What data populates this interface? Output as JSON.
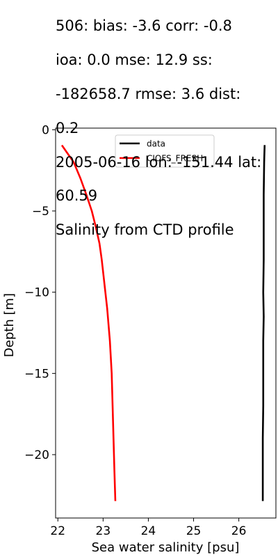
{
  "chart_data": {
    "type": "line",
    "title_lines": [
      "506: bias: -3.6  corr: -0.8",
      "ioa: 0.0  mse: 12.9  ss:",
      "-182658.7  rmse: 3.6  dist:",
      "0.2",
      "2005-06-16 lon: -151.44 lat:",
      "60.59",
      "Salinity from CTD profile"
    ],
    "xlabel": "Sea water salinity [psu]",
    "ylabel": "Depth [m]",
    "xlim": [
      21.95,
      26.82
    ],
    "ylim": [
      -23.9,
      0.1
    ],
    "xticks": [
      22,
      23,
      24,
      25,
      26
    ],
    "yticks": [
      0,
      -5,
      -10,
      -15,
      -20
    ],
    "legend_position": "upper center",
    "grid": false,
    "series": [
      {
        "name": "data",
        "color": "#000000",
        "points": [
          [
            26.57,
            -1.0
          ],
          [
            26.56,
            -2.0
          ],
          [
            26.55,
            -4.0
          ],
          [
            26.55,
            -6.0
          ],
          [
            26.55,
            -8.0
          ],
          [
            26.54,
            -10.0
          ],
          [
            26.55,
            -11.5
          ],
          [
            26.54,
            -13.0
          ],
          [
            26.54,
            -15.0
          ],
          [
            26.54,
            -17.0
          ],
          [
            26.53,
            -19.0
          ],
          [
            26.53,
            -21.0
          ],
          [
            26.53,
            -22.8
          ]
        ]
      },
      {
        "name": "CIOFS_FRESH",
        "color": "#ff0000",
        "points": [
          [
            22.1,
            -1.0
          ],
          [
            22.35,
            -2.0
          ],
          [
            22.5,
            -3.0
          ],
          [
            22.63,
            -4.0
          ],
          [
            22.75,
            -5.0
          ],
          [
            22.84,
            -6.0
          ],
          [
            22.92,
            -7.0
          ],
          [
            22.97,
            -8.0
          ],
          [
            23.01,
            -9.0
          ],
          [
            23.05,
            -10.0
          ],
          [
            23.09,
            -11.0
          ],
          [
            23.12,
            -12.0
          ],
          [
            23.15,
            -13.0
          ],
          [
            23.17,
            -14.0
          ],
          [
            23.19,
            -15.0
          ],
          [
            23.21,
            -17.0
          ],
          [
            23.23,
            -19.0
          ],
          [
            23.25,
            -21.0
          ],
          [
            23.27,
            -22.8
          ]
        ]
      }
    ]
  }
}
